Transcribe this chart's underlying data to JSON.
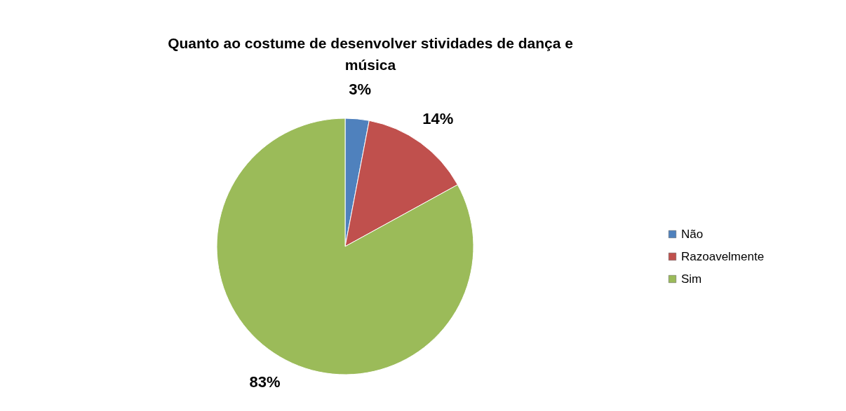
{
  "chart_data": {
    "type": "pie",
    "title": "Quanto ao costume de desenvolver stividades de dança e música",
    "categories": [
      "Não",
      "Razoavelmente",
      "Sim"
    ],
    "values": [
      3,
      14,
      83
    ],
    "colors": [
      "#4f81bd",
      "#c0504d",
      "#9bbb59"
    ],
    "value_labels": [
      "3%",
      "14%",
      "83%"
    ],
    "legend": "right"
  }
}
